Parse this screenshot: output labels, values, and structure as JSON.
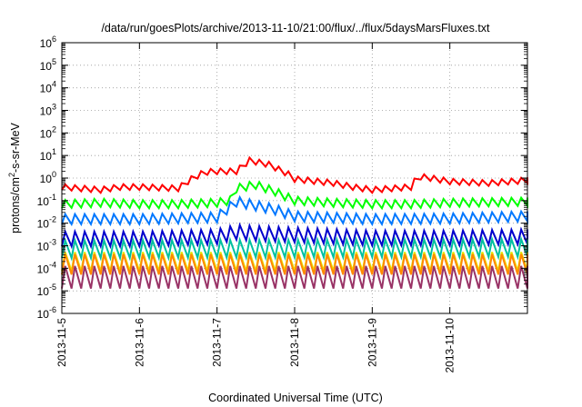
{
  "chart_data": {
    "type": "line",
    "title": "/data/run/goesPlots/archive/2013-11-10/21:00/flux/../flux/5daysMarsFluxes.txt",
    "xlabel": "Coordinated Universal Time (UTC)",
    "ylabel_base": "protons/cm",
    "ylabel_sup": "2",
    "ylabel_rest": "-s-sr-MeV",
    "x_scale": "time",
    "y_scale": "log",
    "xlim": [
      "2013-11-05",
      "2013-11-11"
    ],
    "ylim": [
      1e-06,
      1000000.0
    ],
    "x_ticks": [
      "2013-11-5",
      "2013-11-6",
      "2013-11-7",
      "2013-11-8",
      "2013-11-9",
      "2013-11-10"
    ],
    "y_ticks": [
      {
        "base": "10",
        "exp": "-6"
      },
      {
        "base": "10",
        "exp": "-5"
      },
      {
        "base": "10",
        "exp": "-4"
      },
      {
        "base": "10",
        "exp": "-3"
      },
      {
        "base": "10",
        "exp": "-2"
      },
      {
        "base": "10",
        "exp": "-1"
      },
      {
        "base": "10",
        "exp": "0"
      },
      {
        "base": "10",
        "exp": "1"
      },
      {
        "base": "10",
        "exp": "2"
      },
      {
        "base": "10",
        "exp": "3"
      },
      {
        "base": "10",
        "exp": "4"
      },
      {
        "base": "10",
        "exp": "5"
      },
      {
        "base": "10",
        "exp": "6"
      }
    ],
    "grid": true,
    "legend": "none",
    "period_hours": 3,
    "series": [
      {
        "color": "#ff0000",
        "points": [
          [
            "2013-11-05 00:00",
            0.4
          ],
          [
            "2013-11-05 12:00",
            0.3
          ],
          [
            "2013-11-05 18:00",
            0.4
          ],
          [
            "2013-11-06 00:00",
            0.4
          ],
          [
            "2013-11-06 12:00",
            0.35
          ],
          [
            "2013-11-06 16:00",
            0.9
          ],
          [
            "2013-11-06 20:00",
            1.8
          ],
          [
            "2013-11-07 00:00",
            2.0
          ],
          [
            "2013-11-07 06:00",
            2.0
          ],
          [
            "2013-11-07 10:00",
            6.0
          ],
          [
            "2013-11-07 16:00",
            4.0
          ],
          [
            "2013-11-07 22:00",
            1.5
          ],
          [
            "2013-11-08 00:00",
            0.9
          ],
          [
            "2013-11-08 12:00",
            0.6
          ],
          [
            "2013-11-08 18:00",
            0.4
          ],
          [
            "2013-11-09 00:00",
            0.3
          ],
          [
            "2013-11-09 12:00",
            0.4
          ],
          [
            "2013-11-09 14:00",
            1.2
          ],
          [
            "2013-11-09 18:00",
            1.0
          ],
          [
            "2013-11-10 00:00",
            0.7
          ],
          [
            "2013-11-10 12:00",
            0.6
          ],
          [
            "2013-11-11 00:00",
            0.8
          ]
        ],
        "amp": 1.8
      },
      {
        "color": "#00ff00",
        "points": [
          [
            "2013-11-05 00:00",
            0.07
          ],
          [
            "2013-11-05 12:00",
            0.08
          ],
          [
            "2013-11-06 00:00",
            0.07
          ],
          [
            "2013-11-06 12:00",
            0.07
          ],
          [
            "2013-11-07 00:00",
            0.08
          ],
          [
            "2013-11-07 04:00",
            0.1
          ],
          [
            "2013-11-07 06:00",
            0.35
          ],
          [
            "2013-11-07 12:00",
            0.5
          ],
          [
            "2013-11-07 18:00",
            0.25
          ],
          [
            "2013-11-08 00:00",
            0.1
          ],
          [
            "2013-11-08 12:00",
            0.08
          ],
          [
            "2013-11-09 00:00",
            0.07
          ],
          [
            "2013-11-09 12:00",
            0.07
          ],
          [
            "2013-11-10 00:00",
            0.08
          ],
          [
            "2013-11-11 00:00",
            0.09
          ]
        ],
        "amp": 2.3
      },
      {
        "color": "#0077ff",
        "points": [
          [
            "2013-11-05 00:00",
            0.015
          ],
          [
            "2013-11-06 00:00",
            0.015
          ],
          [
            "2013-11-07 00:00",
            0.018
          ],
          [
            "2013-11-07 06:00",
            0.09
          ],
          [
            "2013-11-07 12:00",
            0.06
          ],
          [
            "2013-11-07 18:00",
            0.04
          ],
          [
            "2013-11-08 00:00",
            0.02
          ],
          [
            "2013-11-09 00:00",
            0.015
          ],
          [
            "2013-11-10 00:00",
            0.016
          ],
          [
            "2013-11-11 00:00",
            0.02
          ]
        ],
        "amp": 2.8
      },
      {
        "color": "#0000cc",
        "points": [
          [
            "2013-11-05 00:00",
            0.002
          ],
          [
            "2013-11-06 00:00",
            0.002
          ],
          [
            "2013-11-07 00:00",
            0.0025
          ],
          [
            "2013-11-07 06:00",
            0.004
          ],
          [
            "2013-11-07 12:00",
            0.0035
          ],
          [
            "2013-11-08 00:00",
            0.003
          ],
          [
            "2013-11-09 00:00",
            0.0022
          ],
          [
            "2013-11-10 00:00",
            0.0022
          ],
          [
            "2013-11-11 00:00",
            0.0025
          ]
        ],
        "amp": 4.5
      },
      {
        "color": "#00c0a0",
        "points": [
          [
            "2013-11-05 00:00",
            0.0007
          ],
          [
            "2013-11-11 00:00",
            0.0008
          ]
        ],
        "amp": 6
      },
      {
        "color": "#e8e800",
        "points": [
          [
            "2013-11-05 00:00",
            0.0002
          ],
          [
            "2013-11-11 00:00",
            0.0002
          ]
        ],
        "amp": 7
      },
      {
        "color": "#ff8800",
        "points": [
          [
            "2013-11-05 00:00",
            0.00015
          ],
          [
            "2013-11-11 00:00",
            0.00015
          ]
        ],
        "amp": 8
      },
      {
        "color": "#993366",
        "points": [
          [
            "2013-11-05 00:00",
            4e-05
          ],
          [
            "2013-11-11 00:00",
            4e-05
          ]
        ],
        "amp": 10
      }
    ]
  }
}
